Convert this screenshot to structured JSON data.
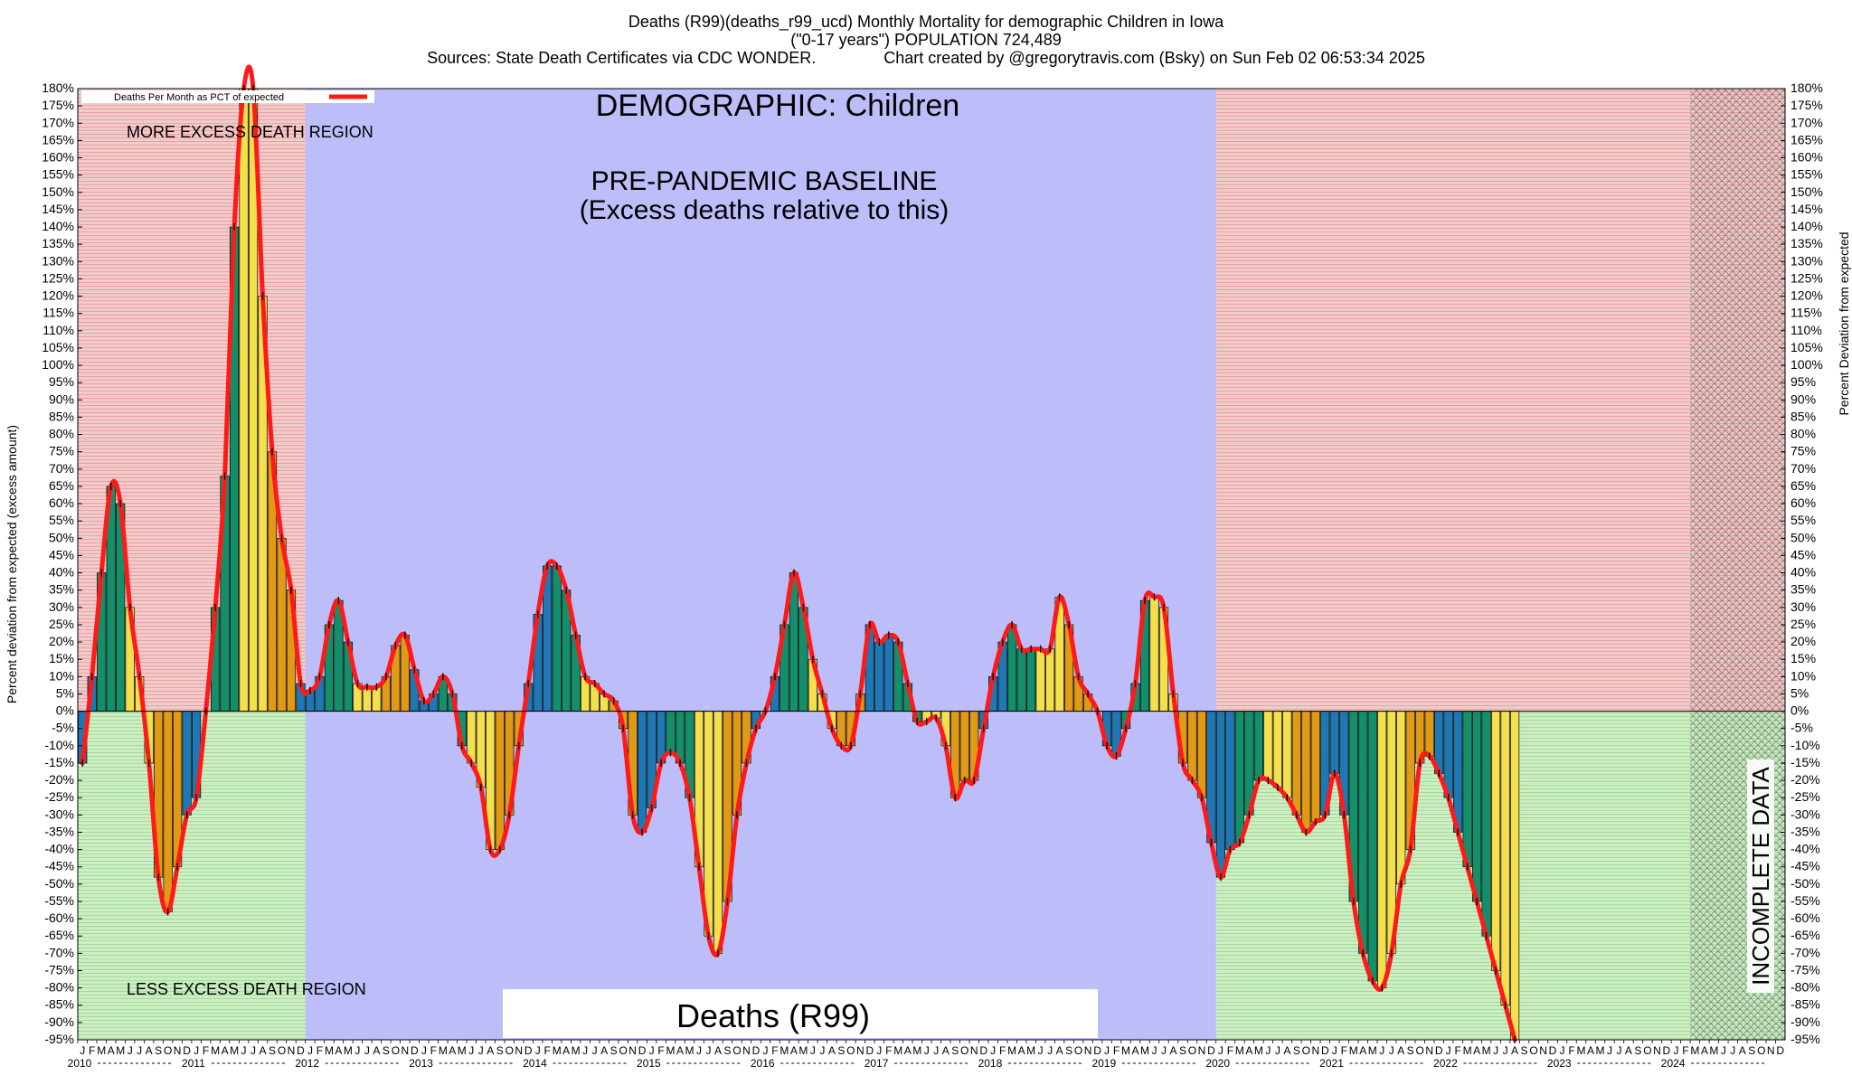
{
  "title": {
    "line1": "Deaths (R99)(deaths_r99_ucd) Monthly Mortality for demographic Children in Iowa",
    "line2": "(\"0-17 years\") POPULATION 724,489",
    "line3": "Sources: State Death Certificates via CDC WONDER.               Chart created by @gregorytravis.com (Bsky) on Sun Feb 02 06:53:34 2025"
  },
  "labels": {
    "demographic": "DEMOGRAPHIC: Children",
    "baseline_line1": "PRE-PANDEMIC BASELINE",
    "baseline_line2": "(Excess deaths relative to this)",
    "more_excess": "MORE EXCESS DEATH REGION",
    "less_excess": "LESS EXCESS DEATH REGION",
    "cause": "Deaths (R99)",
    "incomplete": "INCOMPLETE DATA",
    "legend": "Deaths Per Month as PCT of expected"
  },
  "colors": {
    "more_region": "#f2c4c4",
    "less_region": "#c9ecc0",
    "baseline_region": "#bdbdfa",
    "line": "#ff1a1a",
    "bar_winter": "#1f77b4",
    "bar_spring": "#13906a",
    "bar_summer": "#f4e04d",
    "bar_fall": "#e09a16"
  },
  "chart_data": {
    "type": "bar",
    "ylabel_left": "Percent deviation from expected (excess amount)",
    "ylabel_right": "Percent Deviation from expected",
    "ylim": [
      -95,
      180
    ],
    "ytick_step": 5,
    "month_letters": [
      "J",
      "F",
      "M",
      "A",
      "M",
      "J",
      "J",
      "A",
      "S",
      "O",
      "N",
      "D"
    ],
    "years": [
      "2010",
      "2011",
      "2012",
      "2013",
      "2014",
      "2015",
      "2016",
      "2017",
      "2018",
      "2019",
      "2020",
      "2021",
      "2022",
      "2023",
      "2024"
    ],
    "baseline_years": [
      "2012",
      "2013",
      "2014",
      "2015",
      "2016",
      "2017",
      "2018",
      "2019"
    ],
    "incomplete_from": "2024-03",
    "series": [
      {
        "name": "Deaths Per Month as PCT of expected",
        "values": [
          -15,
          10,
          40,
          65,
          60,
          30,
          10,
          -15,
          -48,
          -58,
          -45,
          -30,
          -25,
          0,
          30,
          68,
          140,
          180,
          180,
          120,
          75,
          50,
          35,
          8,
          6,
          10,
          25,
          32,
          20,
          8,
          7,
          7,
          10,
          19,
          22,
          12,
          3,
          5,
          10,
          5,
          -10,
          -15,
          -22,
          -40,
          -40,
          -30,
          -10,
          8,
          28,
          42,
          42,
          35,
          22,
          10,
          8,
          5,
          3,
          -5,
          -30,
          -35,
          -28,
          -15,
          -12,
          -15,
          -25,
          -45,
          -65,
          -70,
          -55,
          -30,
          -15,
          -5,
          0,
          10,
          25,
          40,
          30,
          15,
          5,
          -5,
          -10,
          -10,
          5,
          25,
          20,
          22,
          20,
          8,
          -3,
          -3,
          -2,
          -10,
          -25,
          -20,
          -20,
          -5,
          10,
          20,
          25,
          18,
          18,
          18,
          18,
          33,
          25,
          10,
          5,
          0,
          -10,
          -13,
          -5,
          8,
          32,
          33,
          30,
          5,
          -15,
          -20,
          -25,
          -38,
          -48,
          -40,
          -38,
          -30,
          -20,
          -20,
          -22,
          -25,
          -30,
          -35,
          -32,
          -30,
          -18,
          -30,
          -55,
          -70,
          -78,
          -80,
          -70,
          -50,
          -40,
          -15,
          -13,
          -18,
          -25,
          -35,
          -45,
          -55,
          -65,
          -75,
          -85,
          -95
        ]
      }
    ]
  }
}
